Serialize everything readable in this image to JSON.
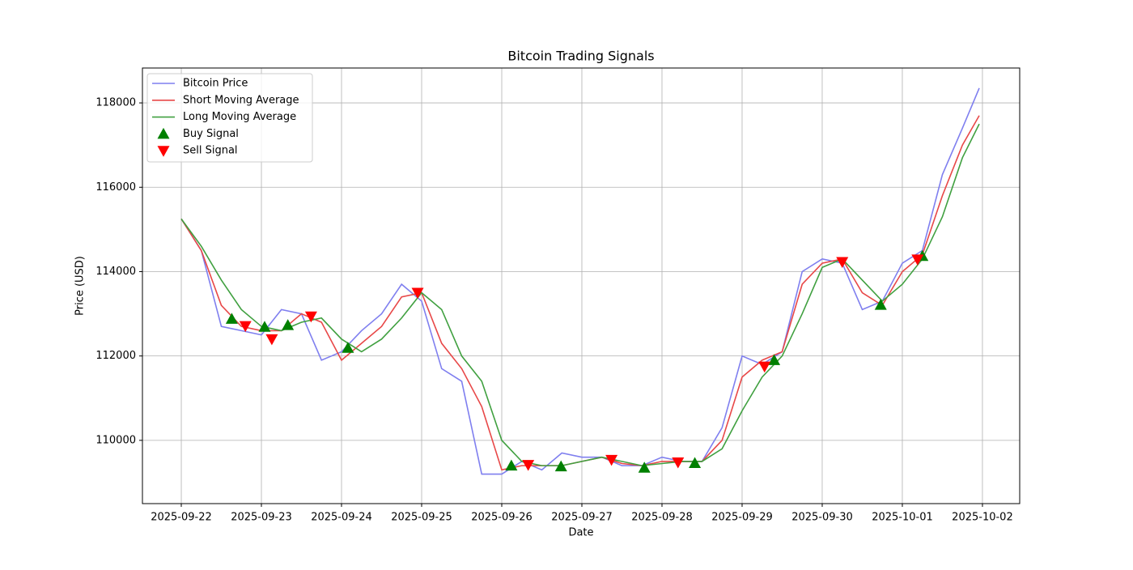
{
  "chart_data": {
    "type": "line",
    "title": "Bitcoin Trading Signals",
    "xlabel": "Date",
    "ylabel": "Price (USD)",
    "grid": true,
    "legend_loc": "upper left",
    "xlim": [
      -0.485,
      10.465
    ],
    "xticks": [
      {
        "value": 0,
        "label": "2025-09-22"
      },
      {
        "value": 1,
        "label": "2025-09-23"
      },
      {
        "value": 2,
        "label": "2025-09-24"
      },
      {
        "value": 3,
        "label": "2025-09-25"
      },
      {
        "value": 4,
        "label": "2025-09-26"
      },
      {
        "value": 5,
        "label": "2025-09-27"
      },
      {
        "value": 6,
        "label": "2025-09-28"
      },
      {
        "value": 7,
        "label": "2025-09-29"
      },
      {
        "value": 8,
        "label": "2025-09-30"
      },
      {
        "value": 9,
        "label": "2025-10-01"
      },
      {
        "value": 10,
        "label": "2025-10-02"
      }
    ],
    "ylim": [
      108500,
      118827
    ],
    "yticks": [
      110000,
      112000,
      114000,
      116000,
      118000
    ],
    "x": [
      0,
      0.25,
      0.5,
      0.75,
      1,
      1.25,
      1.5,
      1.75,
      2,
      2.25,
      2.5,
      2.75,
      3,
      3.25,
      3.5,
      3.75,
      4,
      4.25,
      4.5,
      4.75,
      5,
      5.25,
      5.5,
      5.75,
      6,
      6.25,
      6.5,
      6.75,
      7,
      7.25,
      7.5,
      7.75,
      8,
      8.25,
      8.5,
      8.75,
      9,
      9.25,
      9.5,
      9.75,
      9.96
    ],
    "series": [
      {
        "name": "Bitcoin Price",
        "type": "line",
        "color": "#7f7fef",
        "values": [
          115250,
          114500,
          112700,
          112600,
          112500,
          113100,
          113000,
          111900,
          112100,
          112600,
          113000,
          113700,
          113300,
          111700,
          111400,
          109200,
          109200,
          109500,
          109300,
          109700,
          109600,
          109600,
          109400,
          109400,
          109600,
          109500,
          109500,
          110300,
          112000,
          111800,
          112100,
          114000,
          114300,
          114200,
          113100,
          113300,
          114200,
          114500,
          116300,
          117400,
          118350
        ]
      },
      {
        "name": "Short Moving Average",
        "type": "line",
        "color": "#e84848",
        "values": [
          115250,
          114500,
          113200,
          112700,
          112600,
          112600,
          113000,
          112800,
          111900,
          112300,
          112700,
          113400,
          113500,
          112300,
          111700,
          110800,
          109300,
          109400,
          109400,
          109400,
          109500,
          109600,
          109450,
          109400,
          109500,
          109500,
          109500,
          110000,
          111500,
          111900,
          112100,
          113700,
          114200,
          114300,
          113500,
          113200,
          114000,
          114400,
          115800,
          117000,
          117700
        ]
      },
      {
        "name": "Long Moving Average",
        "type": "line",
        "color": "#40a040",
        "values": [
          115250,
          114600,
          113800,
          113100,
          112700,
          112600,
          112800,
          112900,
          112400,
          112100,
          112400,
          112900,
          113500,
          113100,
          112000,
          111400,
          110000,
          109500,
          109400,
          109400,
          109500,
          109600,
          109500,
          109400,
          109450,
          109500,
          109500,
          109800,
          110700,
          111500,
          112000,
          113000,
          114100,
          114300,
          113800,
          113300,
          113700,
          114300,
          115300,
          116700,
          117500
        ]
      },
      {
        "name": "Buy Signal",
        "type": "scatter",
        "marker": "up",
        "color": "#008000",
        "x": [
          0.63,
          1.04,
          1.33,
          2.08,
          4.12,
          4.74,
          5.78,
          6.41,
          7.4,
          8.73,
          9.25
        ],
        "values": [
          112880,
          112690,
          112730,
          112190,
          109400,
          109380,
          109350,
          109460,
          111900,
          113210,
          114370
        ]
      },
      {
        "name": "Sell Signal",
        "type": "scatter",
        "marker": "down",
        "color": "#ff0000",
        "x": [
          0.8,
          1.13,
          1.62,
          2.95,
          4.33,
          5.37,
          6.2,
          7.28,
          8.25,
          9.19
        ],
        "values": [
          112710,
          112400,
          112940,
          113500,
          109420,
          109540,
          109480,
          111750,
          114230,
          114290
        ]
      }
    ]
  }
}
